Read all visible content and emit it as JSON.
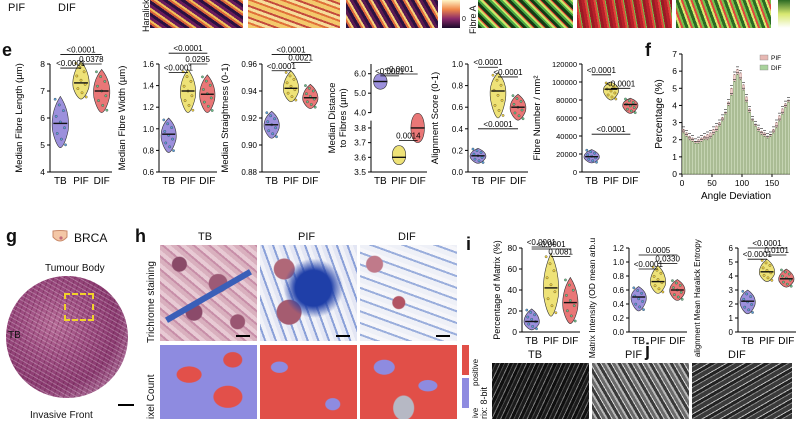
{
  "panel_letters": {
    "e": "e",
    "f": "f",
    "g": "g",
    "h": "h",
    "i": "i",
    "j": "j"
  },
  "top_strip": {
    "pif": "PIF",
    "dif": "DIF",
    "haralick_label": "Haralick",
    "fibre_a_label": "Fibre A"
  },
  "panel_g": {
    "cancer": "BRCA",
    "region": "Tumour Body",
    "tb": "TB",
    "bottom_label": "Invasive Front"
  },
  "panel_h": {
    "cols": [
      "TB",
      "PIF",
      "DIF"
    ],
    "row1": "Trichrome staining",
    "row2": "ixel Count",
    "legend_positive": "positive",
    "legend_negative": "ive"
  },
  "panel_j": {
    "cols": [
      "TB",
      "PIF",
      "DIF"
    ],
    "row_label": "rix: 8-bit"
  },
  "colors": {
    "purple": "#7b6bd0",
    "yellow": "#e8d84a",
    "red": "#e24a4a",
    "teal_green": "#4ab08c",
    "pink_bar": "#e7b8b3",
    "green_bar": "#a9d39c"
  },
  "chart_data": [
    {
      "id": "fibre_length",
      "type": "violin",
      "ylabel": "Median Fibre Length (µm)",
      "categories": [
        "TB",
        "PIF",
        "DIF"
      ],
      "ylim": [
        4,
        8
      ],
      "yticks": [
        "4",
        "5",
        "6",
        "7",
        "8"
      ],
      "yticks_v": [
        4,
        5,
        6,
        7,
        8
      ],
      "medians": [
        5.8,
        7.3,
        7.0
      ],
      "ranges": [
        [
          4.9,
          6.8
        ],
        [
          6.7,
          8.1
        ],
        [
          6.2,
          7.8
        ]
      ],
      "pvals": [
        {
          "a": 0,
          "b": 1,
          "text": "<0.0001",
          "y": 7.85
        },
        {
          "a": 0,
          "b": 2,
          "text": "<0.0001",
          "y": 8.35
        },
        {
          "a": 1,
          "b": 2,
          "text": "0.0378",
          "y": 8.0
        }
      ]
    },
    {
      "id": "fibre_width",
      "type": "violin",
      "ylabel": "Median Fibre Width (µm)",
      "categories": [
        "TB",
        "PIF",
        "DIF"
      ],
      "ylim": [
        0.6,
        1.6
      ],
      "yticks": [
        "0.6",
        "0.8",
        "1.0",
        "1.2",
        "1.4",
        "1.6"
      ],
      "yticks_v": [
        0.6,
        0.8,
        1.0,
        1.2,
        1.4,
        1.6
      ],
      "medians": [
        0.95,
        1.35,
        1.32
      ],
      "ranges": [
        [
          0.78,
          1.1
        ],
        [
          1.15,
          1.55
        ],
        [
          1.15,
          1.5
        ]
      ],
      "pvals": [
        {
          "a": 0,
          "b": 1,
          "text": "<0.0001",
          "y": 1.52
        },
        {
          "a": 0,
          "b": 2,
          "text": "<0.0001",
          "y": 1.7
        },
        {
          "a": 1,
          "b": 2,
          "text": "0.0295",
          "y": 1.6
        }
      ]
    },
    {
      "id": "straightness",
      "type": "violin",
      "ylabel": "Median Straightness (0-1)",
      "categories": [
        "TB",
        "PIF",
        "DIF"
      ],
      "ylim": [
        0.88,
        0.96
      ],
      "yticks": [
        "0.88",
        "0.90",
        "0.92",
        "0.94",
        "0.96"
      ],
      "yticks_v": [
        0.88,
        0.9,
        0.92,
        0.94,
        0.96
      ],
      "medians": [
        0.915,
        0.942,
        0.935
      ],
      "ranges": [
        [
          0.905,
          0.925
        ],
        [
          0.932,
          0.955
        ],
        [
          0.927,
          0.945
        ]
      ],
      "pvals": [
        {
          "a": 0,
          "b": 1,
          "text": "<0.0001",
          "y": 0.955
        },
        {
          "a": 1,
          "b": 2,
          "text": "0.0021",
          "y": 0.961
        },
        {
          "a": 0,
          "b": 2,
          "text": "<0.0001",
          "y": 0.967
        }
      ]
    },
    {
      "id": "distance",
      "type": "violin",
      "ylabel": "Median Distance to Fibres (µm)",
      "categories": [
        "TB",
        "PIF",
        "DIF"
      ],
      "ylim": [
        3.5,
        6.5
      ],
      "yticks": [
        "3.5",
        "3.6",
        "3.7",
        "3.8",
        "4.0",
        "5.0",
        "6.0"
      ],
      "broken": true,
      "medians": [
        5.6,
        3.6,
        3.8
      ],
      "ranges": [
        [
          5.2,
          6.0
        ],
        [
          3.55,
          3.68
        ],
        [
          3.7,
          3.9
        ]
      ],
      "pvals": [
        {
          "a": 0,
          "b": 1,
          "text": "<0.0001",
          "y": 6.3
        },
        {
          "a": 0,
          "b": 2,
          "text": "<0.0001",
          "y": 6.55
        },
        {
          "a": 1,
          "b": 2,
          "text": "0.0014",
          "y": 4.1
        }
      ]
    },
    {
      "id": "alignment",
      "type": "violin",
      "ylabel": "Alignment Score (0-1)",
      "categories": [
        "TB",
        "PIF",
        "DIF"
      ],
      "ylim": [
        0,
        1.0
      ],
      "yticks": [
        "0.0",
        "0.2",
        "0.4",
        "0.6",
        "0.8",
        "1.0"
      ],
      "yticks_v": [
        0,
        0.2,
        0.4,
        0.6,
        0.8,
        1.0
      ],
      "medians": [
        0.15,
        0.75,
        0.6
      ],
      "ranges": [
        [
          0.08,
          0.22
        ],
        [
          0.5,
          0.92
        ],
        [
          0.48,
          0.72
        ]
      ],
      "pvals": [
        {
          "a": 0,
          "b": 1,
          "text": "<0.0001",
          "y": 0.97
        },
        {
          "a": 1,
          "b": 2,
          "text": "<0.0001",
          "y": 0.88
        },
        {
          "a": 0,
          "b": 2,
          "text": "<0.0001",
          "y": 0.4
        }
      ]
    },
    {
      "id": "fibre_number",
      "type": "violin",
      "ylabel": "Fibre Number / mm²",
      "categories": [
        "TB",
        "PIF",
        "DIF"
      ],
      "ylim": [
        0,
        120000
      ],
      "yticks": [
        "0",
        "20000",
        "40000",
        "60000",
        "80000",
        "100000",
        "120000"
      ],
      "yticks_v": [
        0,
        20000,
        40000,
        60000,
        80000,
        100000,
        120000
      ],
      "medians": [
        17000,
        92000,
        75000
      ],
      "ranges": [
        [
          10000,
          25000
        ],
        [
          80000,
          100000
        ],
        [
          65000,
          82000
        ]
      ],
      "pvals": [
        {
          "a": 0,
          "b": 1,
          "text": "<0.0001",
          "y": 108000
        },
        {
          "a": 1,
          "b": 2,
          "text": "<0.0001",
          "y": 93000
        },
        {
          "a": 0,
          "b": 2,
          "text": "<0.0001",
          "y": 42000
        }
      ]
    },
    {
      "id": "angle_deviation",
      "type": "bar",
      "title": "",
      "xlabel": "Angle Deviation",
      "ylabel": "Percentage (%)",
      "xlim": [
        0,
        180
      ],
      "ylim": [
        0,
        7
      ],
      "xticks": [
        "0",
        "50",
        "100",
        "150"
      ],
      "xticks_v": [
        0,
        50,
        100,
        150
      ],
      "yticks": [
        "0",
        "1",
        "2",
        "3",
        "4",
        "5",
        "6",
        "7"
      ],
      "yticks_v": [
        0,
        1,
        2,
        3,
        4,
        5,
        6,
        7
      ],
      "legend": [
        "PIF",
        "DIF"
      ],
      "legend_position": "top-right",
      "x": [
        0,
        5,
        10,
        15,
        20,
        25,
        30,
        35,
        40,
        45,
        50,
        55,
        60,
        65,
        70,
        75,
        80,
        85,
        90,
        95,
        100,
        105,
        110,
        115,
        120,
        125,
        130,
        135,
        140,
        145,
        150,
        155,
        160,
        165,
        170,
        175
      ],
      "series": [
        {
          "name": "PIF",
          "values": [
            2.6,
            2.4,
            2.2,
            2.1,
            1.9,
            2.0,
            2.1,
            2.2,
            2.3,
            2.4,
            2.6,
            2.8,
            3.0,
            3.3,
            3.6,
            4.2,
            5.0,
            5.8,
            6.1,
            5.9,
            5.2,
            4.5,
            3.8,
            3.2,
            2.9,
            2.7,
            2.5,
            2.4,
            2.2,
            2.3,
            2.6,
            3.0,
            3.4,
            3.8,
            4.1,
            4.3
          ]
        },
        {
          "name": "DIF",
          "values": [
            2.4,
            2.2,
            2.0,
            1.9,
            1.8,
            1.8,
            1.9,
            2.0,
            2.0,
            2.1,
            2.3,
            2.5,
            2.8,
            3.1,
            3.5,
            4.0,
            4.6,
            5.4,
            5.8,
            5.5,
            4.9,
            4.2,
            3.6,
            3.1,
            2.8,
            2.5,
            2.3,
            2.2,
            2.1,
            2.2,
            2.4,
            2.7,
            3.1,
            3.5,
            3.9,
            4.2
          ]
        }
      ]
    },
    {
      "id": "matrix_pct",
      "type": "violin",
      "ylabel": "Percentage of Matrix (%)",
      "categories": [
        "TB",
        "PIF",
        "DIF"
      ],
      "ylim": [
        0,
        80
      ],
      "yticks": [
        "0",
        "20",
        "40",
        "60",
        "80"
      ],
      "yticks_v": [
        0,
        20,
        40,
        60,
        80
      ],
      "medians": [
        10,
        42,
        28
      ],
      "ranges": [
        [
          2,
          22
        ],
        [
          15,
          75
        ],
        [
          8,
          52
        ]
      ],
      "pvals": [
        {
          "a": 0,
          "b": 1,
          "text": "<0.0001",
          "y": 82
        },
        {
          "a": 0,
          "b": 2,
          "text": "<0.0001",
          "y": 92
        },
        {
          "a": 1,
          "b": 2,
          "text": "0.0081",
          "y": 72
        }
      ]
    },
    {
      "id": "matrix_intensity",
      "type": "violin",
      "ylabel": "Matrix Intensity (OD mean arb.units)",
      "categories": [
        "TB",
        "PIF",
        "DIF"
      ],
      "ylim": [
        0,
        1.2
      ],
      "yticks": [
        "0.0",
        "0.2",
        "0.4",
        "0.6",
        "0.8",
        "1.0",
        "1.2"
      ],
      "yticks_v": [
        0,
        0.2,
        0.4,
        0.6,
        0.8,
        1.0,
        1.2
      ],
      "medians": [
        0.5,
        0.72,
        0.6
      ],
      "ranges": [
        [
          0.3,
          0.65
        ],
        [
          0.55,
          0.95
        ],
        [
          0.45,
          0.75
        ]
      ],
      "pvals": [
        {
          "a": 0,
          "b": 1,
          "text": "<0.0001",
          "y": 0.9
        },
        {
          "a": 1,
          "b": 2,
          "text": "0.0330",
          "y": 0.98
        },
        {
          "a": 0,
          "b": 2,
          "text": "0.0005",
          "y": 1.1
        }
      ]
    },
    {
      "id": "matrix_alignment",
      "type": "violin",
      "ylabel": "Matrix alignment Mean Haralick Entropy (arb. units)",
      "categories": [
        "TB",
        "PIF",
        "DIF"
      ],
      "ylim": [
        0,
        6
      ],
      "yticks": [
        "0",
        "1",
        "2",
        "3",
        "4",
        "5",
        "6"
      ],
      "yticks_v": [
        0,
        1,
        2,
        3,
        4,
        5,
        6
      ],
      "medians": [
        2.2,
        4.3,
        3.8
      ],
      "ranges": [
        [
          1.3,
          3.0
        ],
        [
          3.6,
          5.2
        ],
        [
          3.2,
          4.5
        ]
      ],
      "pvals": [
        {
          "a": 0,
          "b": 1,
          "text": "<0.0001",
          "y": 5.2
        },
        {
          "a": 1,
          "b": 2,
          "text": "0.0101",
          "y": 5.5
        },
        {
          "a": 0,
          "b": 2,
          "text": "<0.0001",
          "y": 6.0
        }
      ]
    }
  ]
}
